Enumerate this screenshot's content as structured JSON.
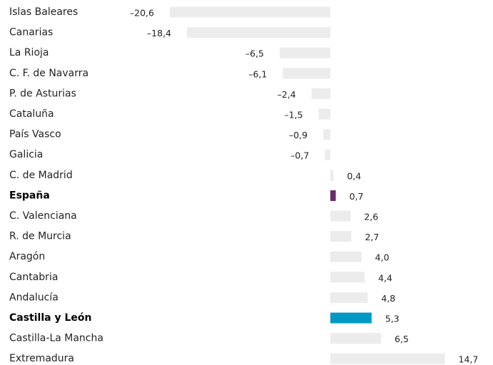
{
  "chart_data": {
    "type": "hbar",
    "categories": [
      "Islas Baleares",
      "Canarias",
      "La Rioja",
      "C. F. de Navarra",
      "P. de Asturias",
      "Cataluña",
      "País Vasco",
      "Galicia",
      "C. de Madrid",
      "España",
      "C. Valenciana",
      "R. de Murcia",
      "Aragón",
      "Cantabria",
      "Andalucía",
      "Castilla y León",
      "Castilla-La Mancha",
      "Extremadura"
    ],
    "values": [
      -20.6,
      -18.4,
      -6.5,
      -6.1,
      -2.4,
      -1.5,
      -0.9,
      -0.7,
      0.4,
      0.7,
      2.6,
      2.7,
      4.0,
      4.4,
      4.8,
      5.3,
      6.5,
      14.7
    ],
    "value_labels": [
      "–20,6",
      "–18,4",
      "–6,5",
      "–6,1",
      "–2,4",
      "–1,5",
      "–0,9",
      "–0,7",
      "0,4",
      "0,7",
      "2,6",
      "2,7",
      "4,0",
      "4,4",
      "4,8",
      "5,3",
      "6,5",
      "14,7"
    ],
    "color": "#ececec",
    "colors": [
      "#ececec",
      "#ececec",
      "#ececec",
      "#ececec",
      "#ececec",
      "#ececec",
      "#ececec",
      "#ececec",
      "#ececec",
      "#6b2a6b",
      "#ececec",
      "#ececec",
      "#ececec",
      "#ececec",
      "#ececec",
      "#0099c6",
      "#ececec",
      "#ececec"
    ]
  }
}
